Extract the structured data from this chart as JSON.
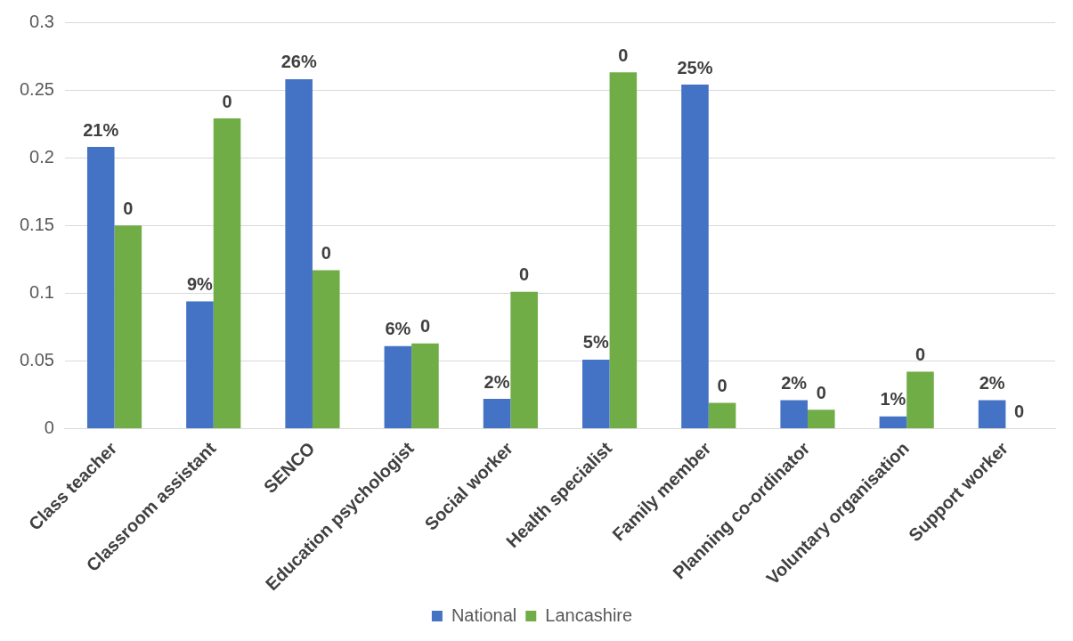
{
  "chart_data": {
    "type": "bar",
    "categories": [
      "Class teacher",
      "Classroom assistant",
      "SENCO",
      "Education psychologist",
      "Social worker",
      "Health specialist",
      "Family member",
      "Planning co-ordinator",
      "Voluntary organisation",
      "Support worker"
    ],
    "series": [
      {
        "name": "National",
        "color": "#4472c4",
        "values": [
          0.208,
          0.094,
          0.258,
          0.061,
          0.022,
          0.051,
          0.254,
          0.021,
          0.009,
          0.021
        ],
        "value_labels": [
          "21%",
          "9%",
          "26%",
          "6%",
          "2%",
          "5%",
          "25%",
          "2%",
          "1%",
          "2%"
        ]
      },
      {
        "name": "Lancashire",
        "color": "#70ad47",
        "values": [
          0.15,
          0.229,
          0.117,
          0.063,
          0.101,
          0.263,
          0.019,
          0.014,
          0.042,
          0
        ],
        "value_labels": [
          "0",
          "0",
          "0",
          "0",
          "0",
          "0",
          "0",
          "0",
          "0",
          "0"
        ]
      }
    ],
    "ylim": [
      0,
      0.3
    ],
    "yticks": [
      0,
      0.05,
      0.1,
      0.15,
      0.2,
      0.25,
      0.3
    ],
    "grid": "y",
    "legend": "bottom"
  }
}
